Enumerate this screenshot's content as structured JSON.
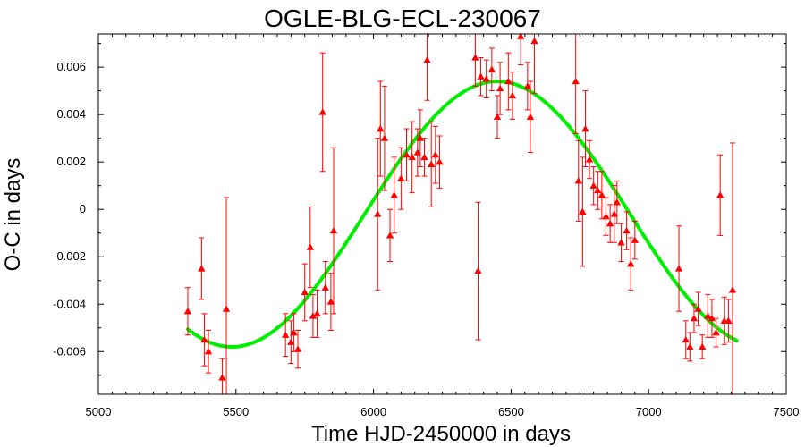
{
  "chart_data": {
    "type": "scatter",
    "title": "OGLE-BLG-ECL-230067",
    "xlabel": "Time HJD-2450000 in days",
    "ylabel": "O-C in days",
    "xlim": [
      5000,
      7500
    ],
    "ylim": [
      -0.0078,
      0.0074
    ],
    "xticks": [
      5000,
      5500,
      6000,
      6500,
      7000,
      7500
    ],
    "xtick_labels": [
      "5000",
      "5500",
      "6000",
      "6500",
      "7000",
      "7500"
    ],
    "yticks": [
      -0.006,
      -0.004,
      -0.002,
      0,
      0.002,
      0.004,
      0.006
    ],
    "ytick_labels": [
      "-0.006",
      "-0.004",
      "-0.002",
      "0",
      "0.002",
      "0.004",
      "0.006"
    ],
    "grid": false,
    "colors": {
      "points": "#ff0000",
      "fit": "#00ee00"
    },
    "series": [
      {
        "kind": "points_with_errorbars",
        "points": [
          {
            "x": 5325,
            "y": -0.0043,
            "err": 0.001
          },
          {
            "x": 5375,
            "y": -0.0025,
            "err": 0.0013
          },
          {
            "x": 5385,
            "y": -0.0055,
            "err": 0.0011
          },
          {
            "x": 5400,
            "y": -0.006,
            "err": 0.0009
          },
          {
            "x": 5450,
            "y": -0.0071,
            "err": 0.0008
          },
          {
            "x": 5465,
            "y": -0.0042,
            "err": 0.0047
          },
          {
            "x": 5680,
            "y": -0.0053,
            "err": 0.0009
          },
          {
            "x": 5700,
            "y": -0.0056,
            "err": 0.0009
          },
          {
            "x": 5710,
            "y": -0.0052,
            "err": 0.0008
          },
          {
            "x": 5725,
            "y": -0.0059,
            "err": 0.0008
          },
          {
            "x": 5750,
            "y": -0.0035,
            "err": 0.0012
          },
          {
            "x": 5770,
            "y": -0.0016,
            "err": 0.0017
          },
          {
            "x": 5780,
            "y": -0.0045,
            "err": 0.0009
          },
          {
            "x": 5795,
            "y": -0.0044,
            "err": 0.001
          },
          {
            "x": 5815,
            "y": 0.0041,
            "err": 0.0025
          },
          {
            "x": 5825,
            "y": -0.0033,
            "err": 0.0011
          },
          {
            "x": 5845,
            "y": -0.0039,
            "err": 0.0012
          },
          {
            "x": 5855,
            "y": -0.0009,
            "err": 0.0035
          },
          {
            "x": 6015,
            "y": -0.0002,
            "err": 0.0032
          },
          {
            "x": 6025,
            "y": 0.0034,
            "err": 0.002
          },
          {
            "x": 6040,
            "y": 0.003,
            "err": 0.0022
          },
          {
            "x": 6060,
            "y": -0.0011,
            "err": 0.0011
          },
          {
            "x": 6075,
            "y": 0.0006,
            "err": 0.0016
          },
          {
            "x": 6100,
            "y": 0.0013,
            "err": 0.0013
          },
          {
            "x": 6120,
            "y": 0.0023,
            "err": 0.0011
          },
          {
            "x": 6140,
            "y": 0.0022,
            "err": 0.0015
          },
          {
            "x": 6160,
            "y": 0.0024,
            "err": 0.001
          },
          {
            "x": 6170,
            "y": 0.003,
            "err": 0.0012
          },
          {
            "x": 6185,
            "y": 0.0022,
            "err": 0.0008
          },
          {
            "x": 6195,
            "y": 0.0063,
            "err": 0.0017
          },
          {
            "x": 6210,
            "y": 0.0019,
            "err": 0.0018
          },
          {
            "x": 6225,
            "y": 0.0023,
            "err": 0.0012
          },
          {
            "x": 6240,
            "y": 0.002,
            "err": 0.0011
          },
          {
            "x": 6370,
            "y": 0.0064,
            "err": 0.0012
          },
          {
            "x": 6380,
            "y": -0.0026,
            "err": 0.0029
          },
          {
            "x": 6390,
            "y": 0.0056,
            "err": 0.0008
          },
          {
            "x": 6410,
            "y": 0.0055,
            "err": 0.0008
          },
          {
            "x": 6430,
            "y": 0.0059,
            "err": 0.0009
          },
          {
            "x": 6450,
            "y": 0.0039,
            "err": 0.0009
          },
          {
            "x": 6460,
            "y": 0.0051,
            "err": 0.0011
          },
          {
            "x": 6490,
            "y": 0.0054,
            "err": 0.0012
          },
          {
            "x": 6505,
            "y": 0.0048,
            "err": 0.001
          },
          {
            "x": 6535,
            "y": 0.0073,
            "err": 0.0012
          },
          {
            "x": 6560,
            "y": 0.0052,
            "err": 0.001
          },
          {
            "x": 6570,
            "y": 0.0039,
            "err": 0.0015
          },
          {
            "x": 6585,
            "y": 0.0071,
            "err": 0.0022
          },
          {
            "x": 6735,
            "y": 0.0054,
            "err": 0.0022
          },
          {
            "x": 6745,
            "y": 0.0012,
            "err": 0.0017
          },
          {
            "x": 6760,
            "y": -0.0001,
            "err": 0.0023
          },
          {
            "x": 6770,
            "y": 0.0034,
            "err": 0.0016
          },
          {
            "x": 6785,
            "y": 0.0021,
            "err": 0.0008
          },
          {
            "x": 6800,
            "y": 0.001,
            "err": 0.0008
          },
          {
            "x": 6815,
            "y": 0.0008,
            "err": 0.0008
          },
          {
            "x": 6830,
            "y": 0.0006,
            "err": 0.001
          },
          {
            "x": 6845,
            "y": -0.0003,
            "err": 0.0008
          },
          {
            "x": 6860,
            "y": -0.0006,
            "err": 0.0008
          },
          {
            "x": 6875,
            "y": -0.0002,
            "err": 0.0012
          },
          {
            "x": 6885,
            "y": 0.0003,
            "err": 0.0009
          },
          {
            "x": 6900,
            "y": -0.0014,
            "err": 0.0008
          },
          {
            "x": 6920,
            "y": -0.0009,
            "err": 0.0008
          },
          {
            "x": 6935,
            "y": -0.0023,
            "err": 0.0011
          },
          {
            "x": 6950,
            "y": -0.0013,
            "err": 0.0008
          },
          {
            "x": 7110,
            "y": -0.0025,
            "err": 0.0018
          },
          {
            "x": 7135,
            "y": -0.0055,
            "err": 0.0008
          },
          {
            "x": 7150,
            "y": -0.0058,
            "err": 0.0006
          },
          {
            "x": 7165,
            "y": -0.0046,
            "err": 0.0006
          },
          {
            "x": 7180,
            "y": -0.0042,
            "err": 0.0007
          },
          {
            "x": 7195,
            "y": -0.0058,
            "err": 0.0005
          },
          {
            "x": 7215,
            "y": -0.0045,
            "err": 0.0009
          },
          {
            "x": 7230,
            "y": -0.0046,
            "err": 0.0008
          },
          {
            "x": 7245,
            "y": -0.0052,
            "err": 0.0006
          },
          {
            "x": 7260,
            "y": 0.0006,
            "err": 0.0017
          },
          {
            "x": 7275,
            "y": -0.0047,
            "err": 0.001
          },
          {
            "x": 7290,
            "y": -0.0047,
            "err": 0.0009
          },
          {
            "x": 7305,
            "y": -0.0034,
            "err": 0.0062
          }
        ]
      },
      {
        "kind": "fit_curve",
        "model": "sinusoid",
        "offset": -0.0002,
        "amplitude": 0.0056,
        "period_days": 1930,
        "peak_time": 6450,
        "x_range": [
          5325,
          7320
        ]
      }
    ]
  }
}
